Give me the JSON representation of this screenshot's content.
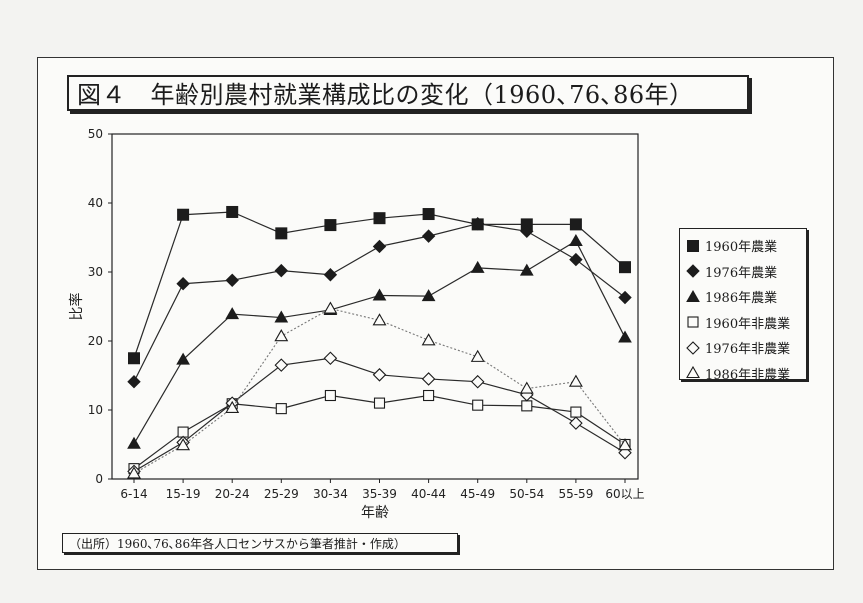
{
  "title": "図４　年齢別農村就業構成比の変化（1960､76､86年）",
  "source": "（出所）1960､76､86年各人口センサスから筆者推計・作成）",
  "chart_data": {
    "type": "line",
    "xlabel": "年齢",
    "ylabel": "比率",
    "ylim": [
      0,
      50
    ],
    "yticks": [
      0,
      10,
      20,
      30,
      40,
      50
    ],
    "grid": false,
    "legend_position": "right",
    "categories": [
      "6-14",
      "15-19",
      "20-24",
      "25-29",
      "30-34",
      "35-39",
      "40-44",
      "45-49",
      "50-54",
      "55-59",
      "60以上"
    ],
    "series": [
      {
        "name": "1960年農業",
        "marker": "square-filled",
        "line": "solid",
        "values": [
          17.5,
          38.3,
          38.7,
          35.6,
          36.8,
          37.8,
          38.4,
          36.9,
          36.9,
          36.9,
          30.7
        ]
      },
      {
        "name": "1976年農業",
        "marker": "diamond-filled",
        "line": "solid",
        "values": [
          14.1,
          28.3,
          28.8,
          30.2,
          29.6,
          33.7,
          35.2,
          37.0,
          35.9,
          31.8,
          26.3
        ]
      },
      {
        "name": "1986年農業",
        "marker": "triangle-filled",
        "line": "solid",
        "values": [
          5.1,
          17.3,
          23.9,
          23.4,
          24.5,
          26.6,
          26.5,
          30.6,
          30.2,
          34.5,
          20.5
        ]
      },
      {
        "name": "1960年非農業",
        "marker": "square-open",
        "line": "solid",
        "values": [
          1.5,
          6.8,
          10.9,
          10.2,
          12.1,
          11.0,
          12.1,
          10.7,
          10.6,
          9.7,
          5.0
        ]
      },
      {
        "name": "1976年非農業",
        "marker": "diamond-open",
        "line": "solid",
        "values": [
          1.1,
          5.3,
          11.0,
          16.5,
          17.5,
          15.1,
          14.5,
          14.1,
          12.2,
          8.1,
          3.8
        ]
      },
      {
        "name": "1986年非農業",
        "marker": "triangle-open",
        "line": "dotted",
        "values": [
          0.8,
          4.9,
          10.3,
          20.7,
          24.7,
          23.0,
          20.1,
          17.7,
          13.1,
          14.1,
          4.9
        ]
      }
    ]
  }
}
